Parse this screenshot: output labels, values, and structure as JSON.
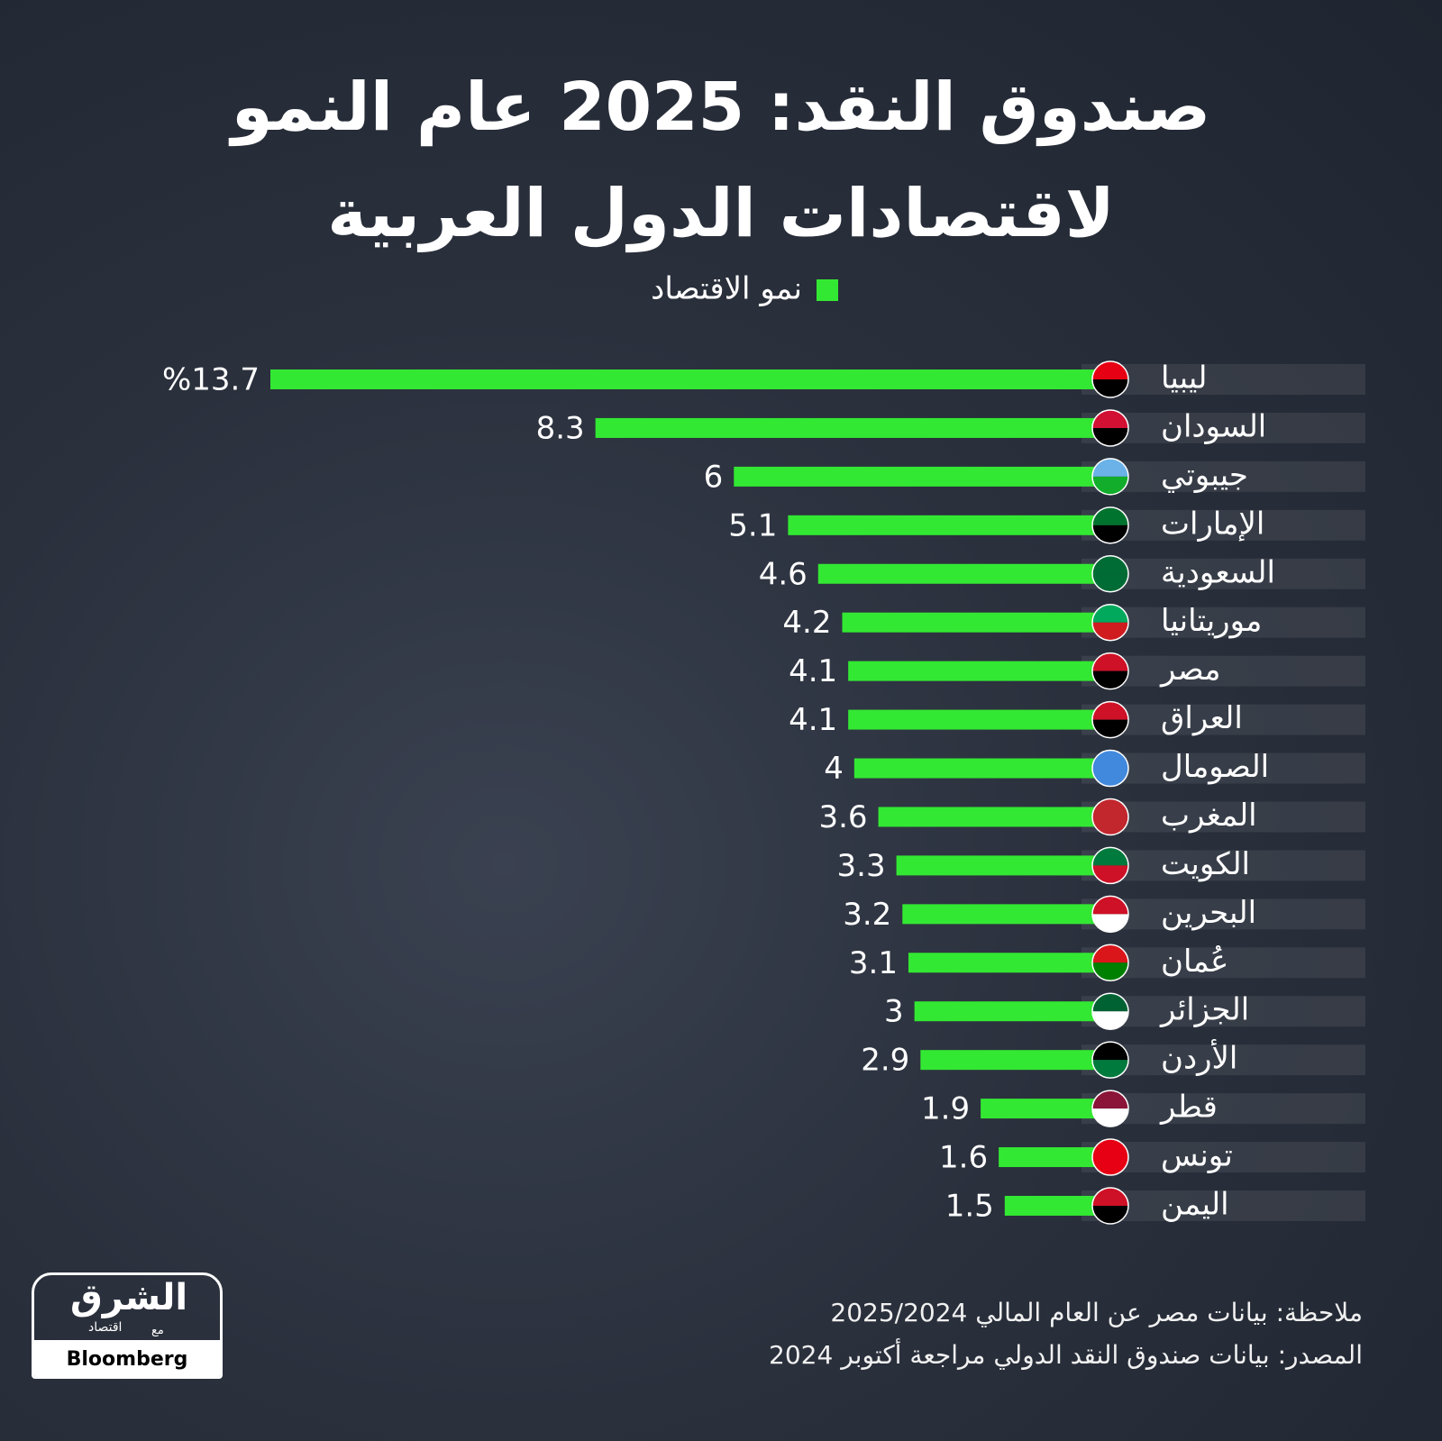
{
  "chart_data": {
    "type": "bar",
    "orientation": "horizontal",
    "title": "صندوق النقد: 2025 عام النمو لاقتصادات الدول العربية",
    "categories": [
      "ليبيا",
      "السودان",
      "جيبوتي",
      "الإمارات",
      "السعودية",
      "موريتانيا",
      "مصر",
      "العراق",
      "الصومال",
      "المغرب",
      "الكويت",
      "البحرين",
      "عُمان",
      "الجزائر",
      "الأردن",
      "قطر",
      "تونس",
      "اليمن"
    ],
    "series": [
      {
        "name": "نمو الاقتصاد",
        "color": "#33e833",
        "values": [
          13.7,
          8.3,
          6,
          5.1,
          4.6,
          4.2,
          4.1,
          4.1,
          4,
          3.6,
          3.3,
          3.2,
          3.1,
          3,
          2.9,
          1.9,
          1.6,
          1.5
        ],
        "value_labels": [
          "%13.7",
          "8.3",
          "6",
          "5.1",
          "4.6",
          "4.2",
          "4.1",
          "4.1",
          "4",
          "3.6",
          "3.3",
          "3.2",
          "3.1",
          "3",
          "2.9",
          "1.9",
          "1.6",
          "1.5"
        ]
      }
    ]
  },
  "note": "ملاحظة: بيانات مصر عن العام المالي 2025/2024",
  "source": "المصدر: بيانات صندوق النقد الدولي مراجعة أكتوبر 2024",
  "logo": {
    "name": "الشرق",
    "subtitle": "اقتصاد",
    "with": "مع",
    "partner": "Bloomberg"
  }
}
